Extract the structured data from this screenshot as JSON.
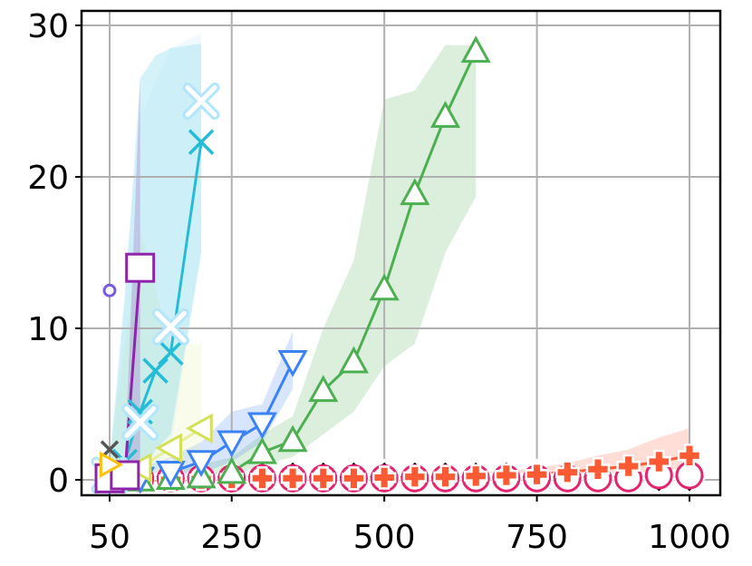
{
  "chart_data": {
    "type": "line",
    "title": "",
    "xlabel": "",
    "ylabel": "",
    "xlim": [
      -0.5,
      1050
    ],
    "ylim": [
      -1,
      31
    ],
    "grid": true,
    "legend": "none",
    "x_ticks": [
      50,
      250,
      500,
      750,
      1000
    ],
    "x_tick_labels": [
      "50",
      "250",
      "500",
      "750",
      "1000"
    ],
    "y_ticks": [
      0,
      10,
      20,
      30
    ],
    "y_tick_labels": [
      "0",
      "10",
      "20",
      "30"
    ],
    "series": [
      {
        "color": "#1f2a7a",
        "marker": "diamond",
        "marker_fill": "#000000",
        "marker_edge": "#ffffff",
        "size": 18,
        "line": true,
        "band": false,
        "x": [
          50,
          100,
          150,
          200,
          250,
          300,
          350,
          400,
          450,
          500,
          550,
          600,
          650,
          700,
          750,
          800,
          850,
          900,
          950,
          1000
        ],
        "y": [
          0.2,
          0.2,
          0.2,
          0.2,
          0.2,
          0.2,
          0.2,
          0.2,
          0.2,
          0.2,
          0.2,
          0.2,
          0.2,
          0.2,
          0.2,
          0.2,
          0.2,
          0.2,
          0.2,
          0.2
        ]
      },
      {
        "color": "#e3266f",
        "marker": "circle",
        "marker_fill": "#ffffff",
        "marker_edge": "#e3266f",
        "size": 14,
        "line": true,
        "band": false,
        "x": [
          50,
          100,
          150,
          200,
          250,
          300,
          350,
          400,
          450,
          500,
          550,
          600,
          650,
          700,
          750,
          800,
          850,
          900,
          950,
          1000
        ],
        "y": [
          0.1,
          0.1,
          0.1,
          0.1,
          0.1,
          0.1,
          0.1,
          0.1,
          0.1,
          0.1,
          0.1,
          0.1,
          0.1,
          0.1,
          0.1,
          0.1,
          0.1,
          0.1,
          0.3,
          0.3
        ]
      },
      {
        "color": "#fc5a32",
        "marker": "plus",
        "marker_fill": "#fc5a32",
        "marker_edge": "#ffffff",
        "size": 12,
        "line": true,
        "band": true,
        "x": [
          50,
          100,
          150,
          200,
          250,
          300,
          350,
          400,
          450,
          500,
          550,
          600,
          650,
          700,
          750,
          800,
          850,
          900,
          950,
          1000
        ],
        "y": [
          0.0,
          0.0,
          0.0,
          0.05,
          0.1,
          0.1,
          0.1,
          0.1,
          0.1,
          0.15,
          0.2,
          0.2,
          0.25,
          0.3,
          0.35,
          0.5,
          0.7,
          0.9,
          1.2,
          1.6
        ],
        "lo": [
          0,
          0,
          0,
          0,
          0,
          0,
          0,
          0,
          0,
          0,
          0,
          0,
          0,
          0.1,
          0.1,
          0.2,
          0.3,
          0.4,
          0.6,
          0.8
        ],
        "hi": [
          0.1,
          0.1,
          0.1,
          0.15,
          0.2,
          0.2,
          0.2,
          0.25,
          0.3,
          0.3,
          0.35,
          0.4,
          0.5,
          0.6,
          0.8,
          1.1,
          1.6,
          2.0,
          2.8,
          3.4
        ]
      },
      {
        "color": "#4caf50",
        "marker": "triangle-up",
        "marker_fill": "#ffffff",
        "marker_edge": "#4caf50",
        "size": 14,
        "line": true,
        "band": true,
        "x": [
          100,
          150,
          200,
          250,
          300,
          350,
          400,
          450,
          500,
          550,
          600,
          650
        ],
        "y": [
          0.0,
          0.1,
          0.2,
          0.5,
          1.8,
          2.6,
          5.9,
          7.8,
          12.6,
          18.9,
          24.0,
          28.3
        ],
        "lo": [
          0,
          0,
          0,
          0.2,
          1.0,
          1.5,
          3.0,
          4.5,
          7.5,
          9.0,
          15.0,
          18.7
        ],
        "hi": [
          0.3,
          0.5,
          1.0,
          1.5,
          3.0,
          4.2,
          10.0,
          14.5,
          25.1,
          25.7,
          28.7,
          28.7
        ]
      },
      {
        "color": "#3b82f6",
        "marker": "triangle-down",
        "marker_fill": "#ffffff",
        "marker_edge": "#3b82f6",
        "size": 14,
        "line": true,
        "band": true,
        "x": [
          50,
          100,
          150,
          200,
          250,
          300,
          350
        ],
        "y": [
          0.0,
          0.1,
          0.5,
          1.2,
          2.5,
          3.7,
          7.8
        ],
        "lo": [
          0,
          0,
          0,
          0.4,
          1.2,
          2.5,
          6.0
        ],
        "hi": [
          0.5,
          0.8,
          1.5,
          2.5,
          4.5,
          5.0,
          9.8
        ]
      },
      {
        "color": "#e6ee9c",
        "marker": "triangle-left",
        "marker_fill": "#ffffff",
        "marker_edge": "#d4e157",
        "size": 14,
        "line": true,
        "band": true,
        "x": [
          50,
          100,
          150,
          200
        ],
        "y": [
          0.5,
          0.8,
          2.1,
          3.4
        ],
        "lo": [
          0,
          0,
          0.5,
          1.5
        ],
        "hi": [
          1.5,
          16.5,
          8.8,
          9.0
        ]
      },
      {
        "color": "#26bcd6",
        "marker": "x",
        "marker_fill": "#26bcd6",
        "marker_edge": "#26bcd6",
        "size": 13,
        "line": true,
        "band": true,
        "x": [
          50,
          75,
          100,
          125,
          150,
          200
        ],
        "y": [
          0.3,
          1.2,
          4.5,
          7.2,
          8.4,
          22.3
        ],
        "lo": [
          0,
          0,
          0,
          2,
          3,
          15
        ],
        "hi": [
          1,
          12,
          26.5,
          28,
          28.5,
          28.8
        ]
      },
      {
        "color": "#b3e5fc",
        "marker": "x-filled",
        "marker_fill": "#ffffff",
        "marker_edge": "#b3e5fc",
        "size": 15,
        "line": false,
        "band": true,
        "x": [
          50,
          100,
          150,
          200
        ],
        "y": [
          0.3,
          3.8,
          10.1,
          25.0
        ],
        "lo": [
          0,
          0,
          2,
          15
        ],
        "hi": [
          1.5,
          24,
          28.5,
          29.5
        ]
      },
      {
        "color": "#8e24aa",
        "marker": "square",
        "marker_fill": "#ffffff",
        "marker_edge": "#8e24aa",
        "size": 15,
        "line": true,
        "band": true,
        "x": [
          50,
          75,
          100
        ],
        "y": [
          0.1,
          0.3,
          14.0
        ],
        "lo": [
          0,
          0,
          0
        ],
        "hi": [
          0.5,
          1,
          26.5
        ]
      },
      {
        "color": "#7b5ce0",
        "marker": "circle",
        "marker_fill": "#ffffff",
        "marker_edge": "#7b5ce0",
        "size": 6,
        "line": false,
        "band": false,
        "x": [
          50
        ],
        "y": [
          12.5
        ]
      },
      {
        "color": "#555555",
        "marker": "x",
        "marker_fill": "#555555",
        "marker_edge": "#555555",
        "size": 9,
        "line": false,
        "band": false,
        "x": [
          50
        ],
        "y": [
          2.0
        ]
      },
      {
        "color": "#ffc107",
        "marker": "triangle-right",
        "marker_fill": "#ffffff",
        "marker_edge": "#ffc107",
        "size": 12,
        "line": false,
        "band": false,
        "x": [
          50
        ],
        "y": [
          1.0
        ]
      }
    ]
  }
}
